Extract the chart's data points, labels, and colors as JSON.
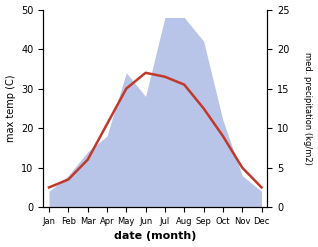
{
  "months": [
    "Jan",
    "Feb",
    "Mar",
    "Apr",
    "May",
    "Jun",
    "Jul",
    "Aug",
    "Sep",
    "Oct",
    "Nov",
    "Dec"
  ],
  "temp_C": [
    5,
    7,
    12,
    21,
    30,
    34,
    33,
    31,
    25,
    18,
    10,
    5
  ],
  "precip_mm": [
    2,
    4,
    7,
    9,
    17,
    14,
    24,
    24,
    21,
    11,
    4,
    2
  ],
  "temp_color": "#c0392b",
  "precip_fill_color": "#b8c4e8",
  "ylabel_left": "max temp (C)",
  "ylabel_right": "med. precipitation (kg/m2)",
  "xlabel": "date (month)",
  "ylim_left": [
    0,
    50
  ],
  "ylim_right": [
    0,
    25
  ],
  "yticks_left": [
    0,
    10,
    20,
    30,
    40,
    50
  ],
  "yticks_right": [
    0,
    5,
    10,
    15,
    20,
    25
  ],
  "bg_color": "#ffffff",
  "temp_linewidth": 1.8
}
